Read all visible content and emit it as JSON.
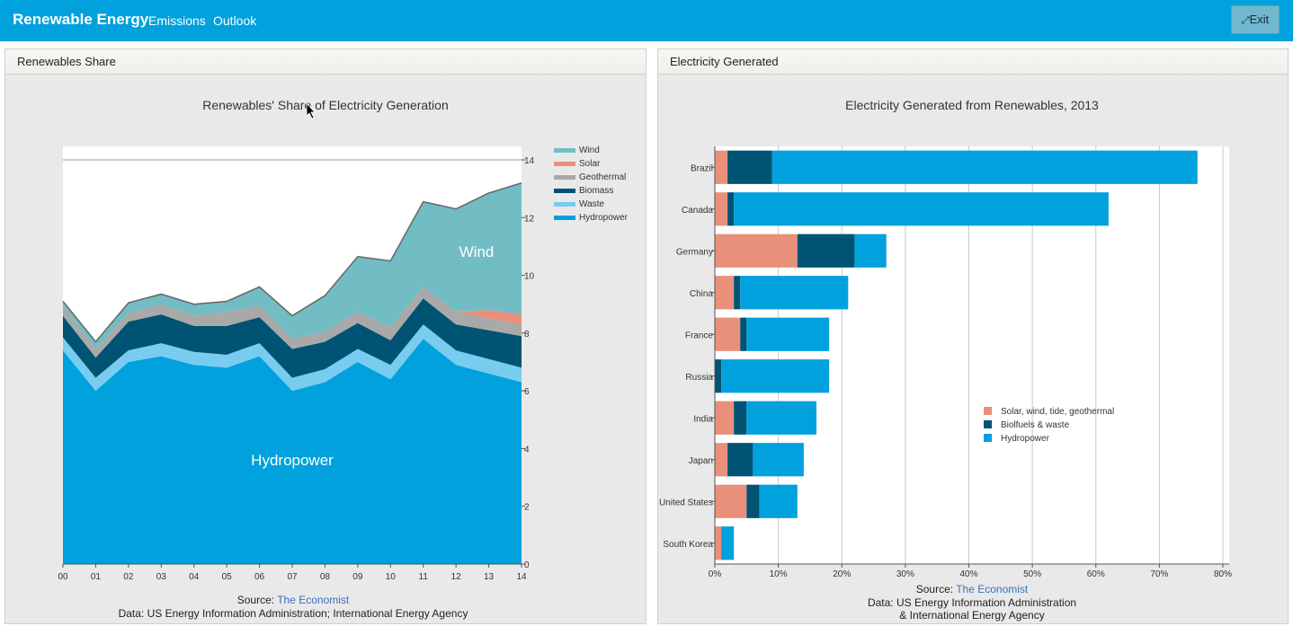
{
  "navbar": {
    "brand": "Renewable Energy",
    "links": [
      "Emissions",
      "Outlook"
    ],
    "exit_label": "Exit",
    "exit_icon": "compress-icon"
  },
  "left_panel": {
    "title": "Renewables Share",
    "source_label": "Source: ",
    "source_link": "The Economist",
    "data_note": "Data: US Energy Information Administration; International Energy Agency",
    "overlay_labels": {
      "wind": "Wind",
      "hydro": "Hydropower"
    }
  },
  "right_panel": {
    "title": "Electricity Generated",
    "source_label": "Source: ",
    "source_link": "The Economist",
    "data_note_1": "Data: US Energy Information Administration",
    "data_note_2": "& International Energy Agency"
  },
  "chart_data": [
    {
      "type": "area",
      "title": "Renewables' Share of Electricity Generation",
      "x": [
        "00",
        "01",
        "02",
        "03",
        "04",
        "05",
        "06",
        "07",
        "08",
        "09",
        "10",
        "11",
        "12",
        "13",
        "14"
      ],
      "ylim": [
        0,
        14
      ],
      "yticks": [
        0,
        2,
        4,
        6,
        8,
        10,
        12,
        14
      ],
      "stacked": true,
      "legend_position": "right",
      "series": [
        {
          "name": "Hydropower",
          "color": "#00a1dc",
          "values": [
            7.4,
            6.0,
            7.0,
            7.2,
            6.9,
            6.8,
            7.2,
            6.0,
            6.3,
            7.0,
            6.4,
            7.8,
            6.9,
            6.6,
            6.3
          ]
        },
        {
          "name": "Waste",
          "color": "#77ccf0",
          "values": [
            0.45,
            0.45,
            0.4,
            0.45,
            0.45,
            0.45,
            0.45,
            0.45,
            0.45,
            0.45,
            0.5,
            0.5,
            0.5,
            0.5,
            0.5
          ]
        },
        {
          "name": "Biomass",
          "color": "#005373",
          "values": [
            0.75,
            0.7,
            1.0,
            1.0,
            0.9,
            1.0,
            0.9,
            1.0,
            0.95,
            0.9,
            0.85,
            0.9,
            0.9,
            1.0,
            1.1
          ]
        },
        {
          "name": "Geothermal",
          "color": "#a9a9a9",
          "values": [
            0.35,
            0.3,
            0.3,
            0.35,
            0.35,
            0.5,
            0.4,
            0.35,
            0.35,
            0.4,
            0.45,
            0.4,
            0.45,
            0.4,
            0.4
          ]
        },
        {
          "name": "Solar",
          "color": "#e8907a",
          "values": [
            0.0,
            0.0,
            0.0,
            0.0,
            0.0,
            0.0,
            0.0,
            0.0,
            0.0,
            0.0,
            0.0,
            0.0,
            0.0,
            0.3,
            0.35
          ]
        },
        {
          "name": "Wind",
          "color": "#72bcc4",
          "values": [
            0.15,
            0.25,
            0.35,
            0.35,
            0.4,
            0.35,
            0.65,
            0.8,
            1.25,
            1.9,
            2.3,
            2.95,
            3.55,
            4.05,
            4.55
          ]
        }
      ]
    },
    {
      "type": "bar",
      "orientation": "horizontal",
      "title": "Electricity Generated from Renewables, 2013",
      "categories": [
        "Brazil",
        "Canada",
        "Germany",
        "China",
        "France",
        "Russia",
        "India",
        "Japan",
        "United States",
        "South Korea"
      ],
      "xlim": [
        0,
        80
      ],
      "xticks": [
        "0%",
        "10%",
        "20%",
        "30%",
        "40%",
        "50%",
        "60%",
        "70%",
        "80%"
      ],
      "stacked": true,
      "legend_position": "right",
      "series": [
        {
          "name": "Solar, wind, tide, geothermal",
          "color": "#e8907a",
          "values": [
            2,
            2,
            13,
            3,
            4,
            0,
            3,
            2,
            5,
            1
          ]
        },
        {
          "name": "Biolfuels & waste",
          "color": "#005373",
          "values": [
            7,
            1,
            9,
            1,
            1,
            1,
            2,
            4,
            2,
            0
          ]
        },
        {
          "name": "Hydropower",
          "color": "#00a1dc",
          "values": [
            67,
            59,
            5,
            17,
            13,
            17,
            11,
            8,
            6,
            2
          ]
        }
      ]
    }
  ]
}
